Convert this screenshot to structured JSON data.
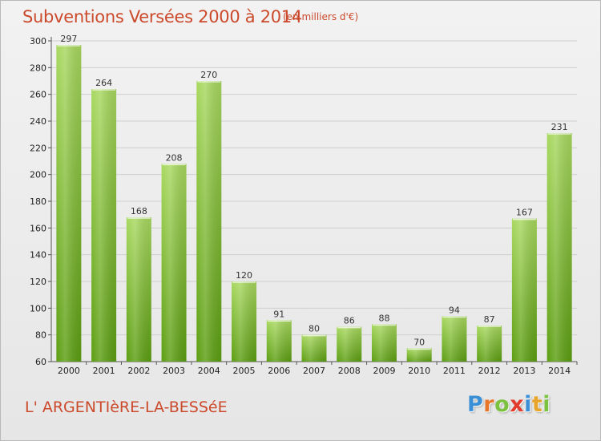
{
  "header": {
    "title": "Subventions Versées 2000 à 2014",
    "subtitle": "(en milliers d'€)"
  },
  "footer": {
    "place": "L' ARGENTIèRE-LA-BESSéE",
    "logo_letters": [
      "P",
      "r",
      "o",
      "x",
      "i",
      "t",
      "i"
    ],
    "logo_colors": [
      "#3a8fd6",
      "#e8762a",
      "#7cc241",
      "#e23b2e",
      "#3a8fd6",
      "#e8a52a",
      "#7cc241"
    ]
  },
  "colors": {
    "bar_light": "#a8d860",
    "bar_dark": "#5c9e12",
    "grid": "#cfcfcf",
    "accent": "#cc4a2c"
  },
  "chart_data": {
    "type": "bar",
    "categories": [
      "2000",
      "2001",
      "2002",
      "2003",
      "2004",
      "2005",
      "2006",
      "2007",
      "2008",
      "2009",
      "2010",
      "2011",
      "2012",
      "2013",
      "2014"
    ],
    "values": [
      297,
      264,
      168,
      208,
      270,
      120,
      91,
      80,
      86,
      88,
      70,
      94,
      87,
      167,
      231
    ],
    "ylim": [
      60,
      300
    ],
    "yticks": [
      60,
      80,
      100,
      120,
      140,
      160,
      180,
      200,
      220,
      240,
      260,
      280,
      300
    ],
    "grid": true,
    "legend": "none"
  }
}
